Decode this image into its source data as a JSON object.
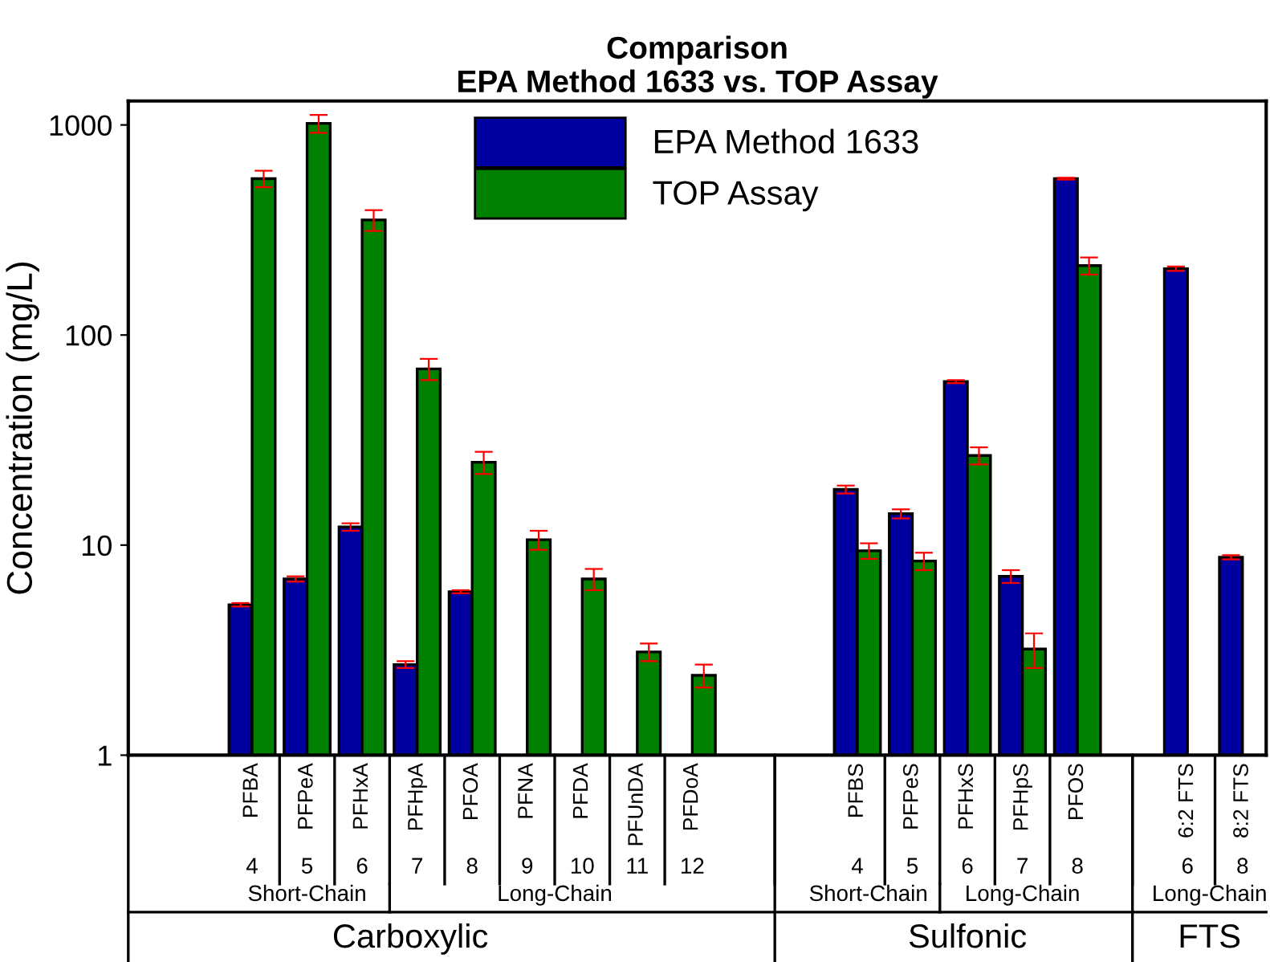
{
  "chart_data": {
    "type": "bar",
    "title": "Comparison\nEPA Method 1633 vs. TOP Assay",
    "ylabel": "Concentration (mg/L)",
    "categories": [
      "PFBA\n4",
      "PFPeA\n5",
      "PFHxA\n6",
      "PFHpA\n7",
      "PFOA\n8",
      "PFNA\n9",
      "PFDA\n10",
      "PFUnDA\n11",
      "PFDoA\n12",
      null,
      null,
      "PFBS\n4",
      "PFPeS\n5",
      "PFHxS\n6",
      "PFHpS\n7",
      "PFOS\n8",
      null,
      "6:2 FTS\n6",
      "8:2 FTS\n8"
    ],
    "series": [
      {
        "name": "EPA Method 1633",
        "color": "#0000a0",
        "values": [
          5.2,
          6.9,
          12.2,
          2.7,
          6.0,
          null,
          null,
          null,
          null,
          null,
          null,
          18.4,
          14.1,
          60,
          7.1,
          555,
          null,
          207,
          8.75
        ],
        "errors": [
          0.1,
          0.2,
          0.5,
          0.1,
          0.1,
          null,
          null,
          null,
          null,
          null,
          null,
          0.8,
          0.7,
          1,
          0.5,
          5,
          null,
          5,
          0.2
        ]
      },
      {
        "name": "TOP Assay",
        "color": "#008000",
        "values": [
          555,
          1017,
          353,
          69,
          24.8,
          10.6,
          6.9,
          3.1,
          2.4,
          null,
          null,
          9.4,
          8.4,
          26.7,
          3.2,
          214,
          null,
          null,
          null
        ],
        "errors": [
          50,
          100,
          40,
          8,
          3,
          1.1,
          0.8,
          0.3,
          0.3,
          null,
          null,
          0.8,
          0.8,
          2.5,
          0.6,
          20,
          null,
          null,
          null
        ]
      }
    ],
    "log": "y",
    "ylim": [
      1,
      1300
    ],
    "yticks": [
      1,
      10,
      100,
      1000
    ],
    "grid": false,
    "legend": "top",
    "annotations": [
      "Short-Chain",
      "Long-Chain",
      "Short-Chain",
      "Long-Chain",
      "Long-Chain",
      "Carboxylic",
      "Sulfonic",
      "FTS"
    ]
  }
}
